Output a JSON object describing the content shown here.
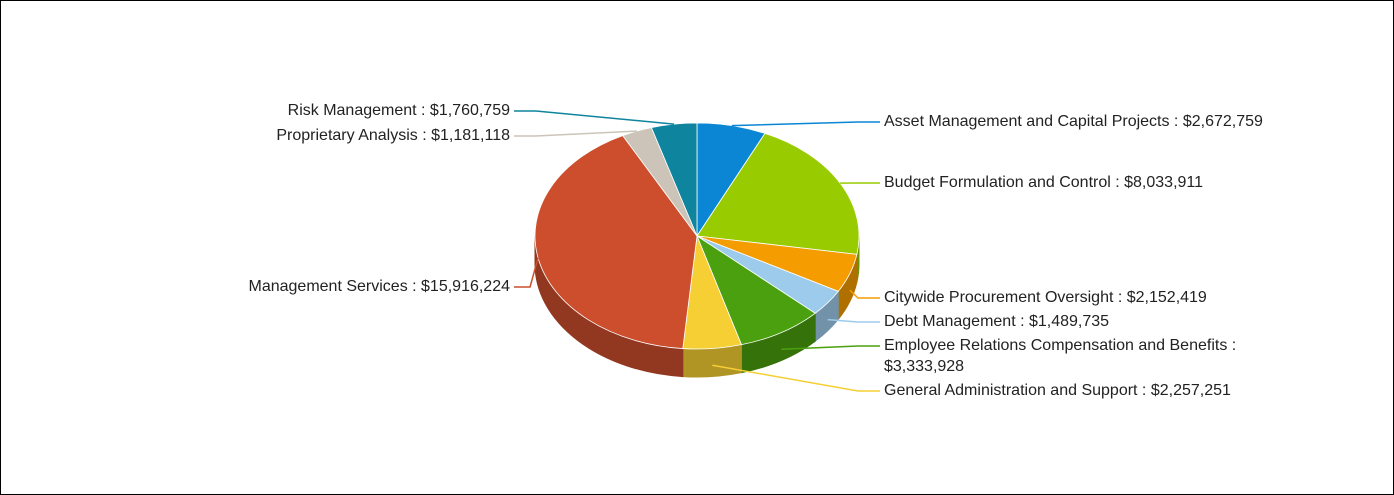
{
  "chart_data": {
    "type": "pie",
    "values": [
      2672759,
      8033911,
      2152419,
      1489735,
      3333928,
      2257251,
      15916224,
      1181118,
      1760759
    ],
    "value_labels": [
      "Asset Management and Capital Projects : $2,672,759",
      "Budget Formulation and Control : $8,033,911",
      "Citywide Procurement Oversight : $2,152,419",
      "Debt Management : $1,489,735",
      "Employee Relations Compensation and Benefits : $3,333,928",
      "General Administration and Support : $2,257,251",
      "Management Services : $15,916,224",
      "Proprietary Analysis : $1,181,118",
      "Risk Management : $1,760,759"
    ],
    "colors": [
      "#0a86d4",
      "#99cc00",
      "#f59c00",
      "#9dcbeb",
      "#4aa00e",
      "#f5cf34",
      "#cc4e2c",
      "#ccc4b8",
      "#0f849e"
    ]
  }
}
